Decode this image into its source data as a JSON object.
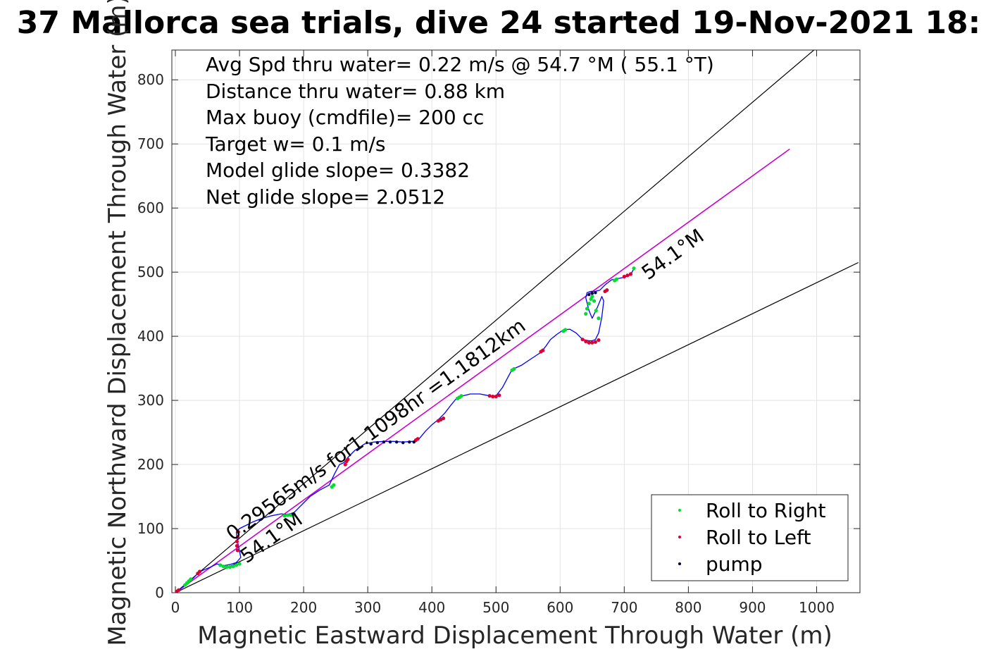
{
  "chart_data": {
    "type": "line",
    "title": "37 Mallorca sea trials, dive 24 started 19-Nov-2021 18:",
    "xlabel": "Magnetic Eastward Displacement Through Water (m)",
    "ylabel": "Magnetic Northward Displacement Through Water (m)",
    "xlim": [
      0,
      1070
    ],
    "ylim": [
      0,
      850
    ],
    "xticks": [
      0,
      100,
      200,
      300,
      400,
      500,
      600,
      700,
      800,
      900,
      1000
    ],
    "yticks": [
      0,
      100,
      200,
      300,
      400,
      500,
      600,
      700,
      800
    ],
    "grid": true,
    "legend_position": "bottom-right",
    "info_lines": [
      "Avg Spd thru water=  0.22 m/s @  54.7 °M ( 55.1 °T)",
      "Distance thru water=  0.88 km",
      "Max buoy (cmdfile)= 200 cc",
      "Target w= 0.1 m/s",
      "Model glide slope= 0.3382",
      "Net glide slope= 2.0512"
    ],
    "annotations": {
      "course_label": "0.29565m/s for1.1098hr =1.1812km",
      "heading_label_end": "54.1°M",
      "heading_label_start": "54.1°M"
    },
    "colors": {
      "track": "#0000ff",
      "target_line": "#cc00cc",
      "cone_lines": "#000000",
      "roll_right": "#00dd33",
      "roll_left": "#dd0033",
      "pump": "#000044"
    },
    "cone_lines": [
      {
        "x": [
          0,
          1000
        ],
        "y": [
          0,
          850
        ]
      },
      {
        "x": [
          0,
          1065
        ],
        "y": [
          0,
          515
        ]
      }
    ],
    "target_line": {
      "x": [
        0,
        958
      ],
      "y": [
        0,
        692
      ]
    },
    "track": {
      "x": [
        0,
        10,
        20,
        30,
        37,
        45,
        55,
        65,
        75,
        85,
        95,
        102,
        100,
        98,
        96,
        95,
        100,
        110,
        120,
        135,
        150,
        165,
        175,
        185,
        195,
        210,
        225,
        240,
        248,
        256,
        263,
        268,
        280,
        295,
        310,
        325,
        340,
        355,
        370,
        380,
        390,
        400,
        410,
        420,
        430,
        440,
        448,
        460,
        475,
        490,
        500,
        510,
        518,
        525,
        540,
        555,
        570,
        578,
        585,
        595,
        605,
        615,
        625,
        635,
        645,
        650,
        655,
        660,
        663,
        665,
        668,
        665,
        658,
        650,
        645,
        640,
        642,
        648,
        655,
        662,
        670,
        680,
        690,
        700,
        708,
        712,
        716
      ],
      "y": [
        0,
        8,
        15,
        25,
        32,
        36,
        40,
        45,
        42,
        44,
        47,
        55,
        65,
        75,
        85,
        95,
        100,
        105,
        110,
        116,
        120,
        123,
        122,
        125,
        135,
        150,
        160,
        168,
        185,
        200,
        203,
        210,
        222,
        232,
        235,
        236,
        236,
        235,
        236,
        240,
        252,
        262,
        270,
        280,
        293,
        305,
        307,
        310,
        310,
        307,
        307,
        320,
        335,
        348,
        355,
        365,
        375,
        385,
        395,
        403,
        410,
        411,
        405,
        395,
        393,
        393,
        395,
        405,
        420,
        430,
        455,
        462,
        445,
        428,
        440,
        460,
        468,
        470,
        470,
        472,
        480,
        488,
        490,
        492,
        495,
        500,
        507
      ]
    },
    "roll_right": {
      "x": [
        15,
        18,
        21,
        24,
        70,
        75,
        80,
        85,
        90,
        95,
        100,
        170,
        175,
        180,
        185,
        244,
        247,
        440,
        443,
        446,
        525,
        528,
        605,
        608,
        640,
        642,
        645,
        648,
        650,
        653,
        656,
        660,
        685,
        688,
        715
      ],
      "y": [
        12,
        15,
        18,
        21,
        43,
        41,
        40,
        40,
        41,
        43,
        45,
        120,
        121,
        121,
        122,
        165,
        168,
        303,
        305,
        307,
        347,
        349,
        408,
        410,
        435,
        443,
        451,
        458,
        462,
        455,
        440,
        428,
        487,
        489,
        506
      ]
    },
    "roll_left": {
      "x": [
        2,
        5,
        35,
        38,
        98,
        97,
        96,
        96,
        97,
        265,
        267,
        269,
        375,
        378,
        410,
        414,
        418,
        490,
        495,
        500,
        505,
        570,
        573,
        635,
        640,
        645,
        650,
        655,
        660,
        670,
        673,
        700,
        705,
        710
      ],
      "y": [
        2,
        4,
        30,
        33,
        95,
        87,
        80,
        73,
        66,
        200,
        205,
        208,
        238,
        240,
        268,
        270,
        272,
        307,
        306,
        306,
        308,
        376,
        378,
        395,
        392,
        390,
        390,
        391,
        394,
        470,
        472,
        493,
        495,
        497
      ]
    },
    "pump": {
      "x": [
        305,
        315,
        325,
        335,
        345,
        355,
        365,
        372,
        645,
        650,
        655
      ],
      "y": [
        232,
        234,
        235,
        235,
        235,
        234,
        235,
        235,
        465,
        467,
        468
      ]
    },
    "legend": [
      "Roll to Right",
      "Roll to Left",
      "pump"
    ]
  }
}
